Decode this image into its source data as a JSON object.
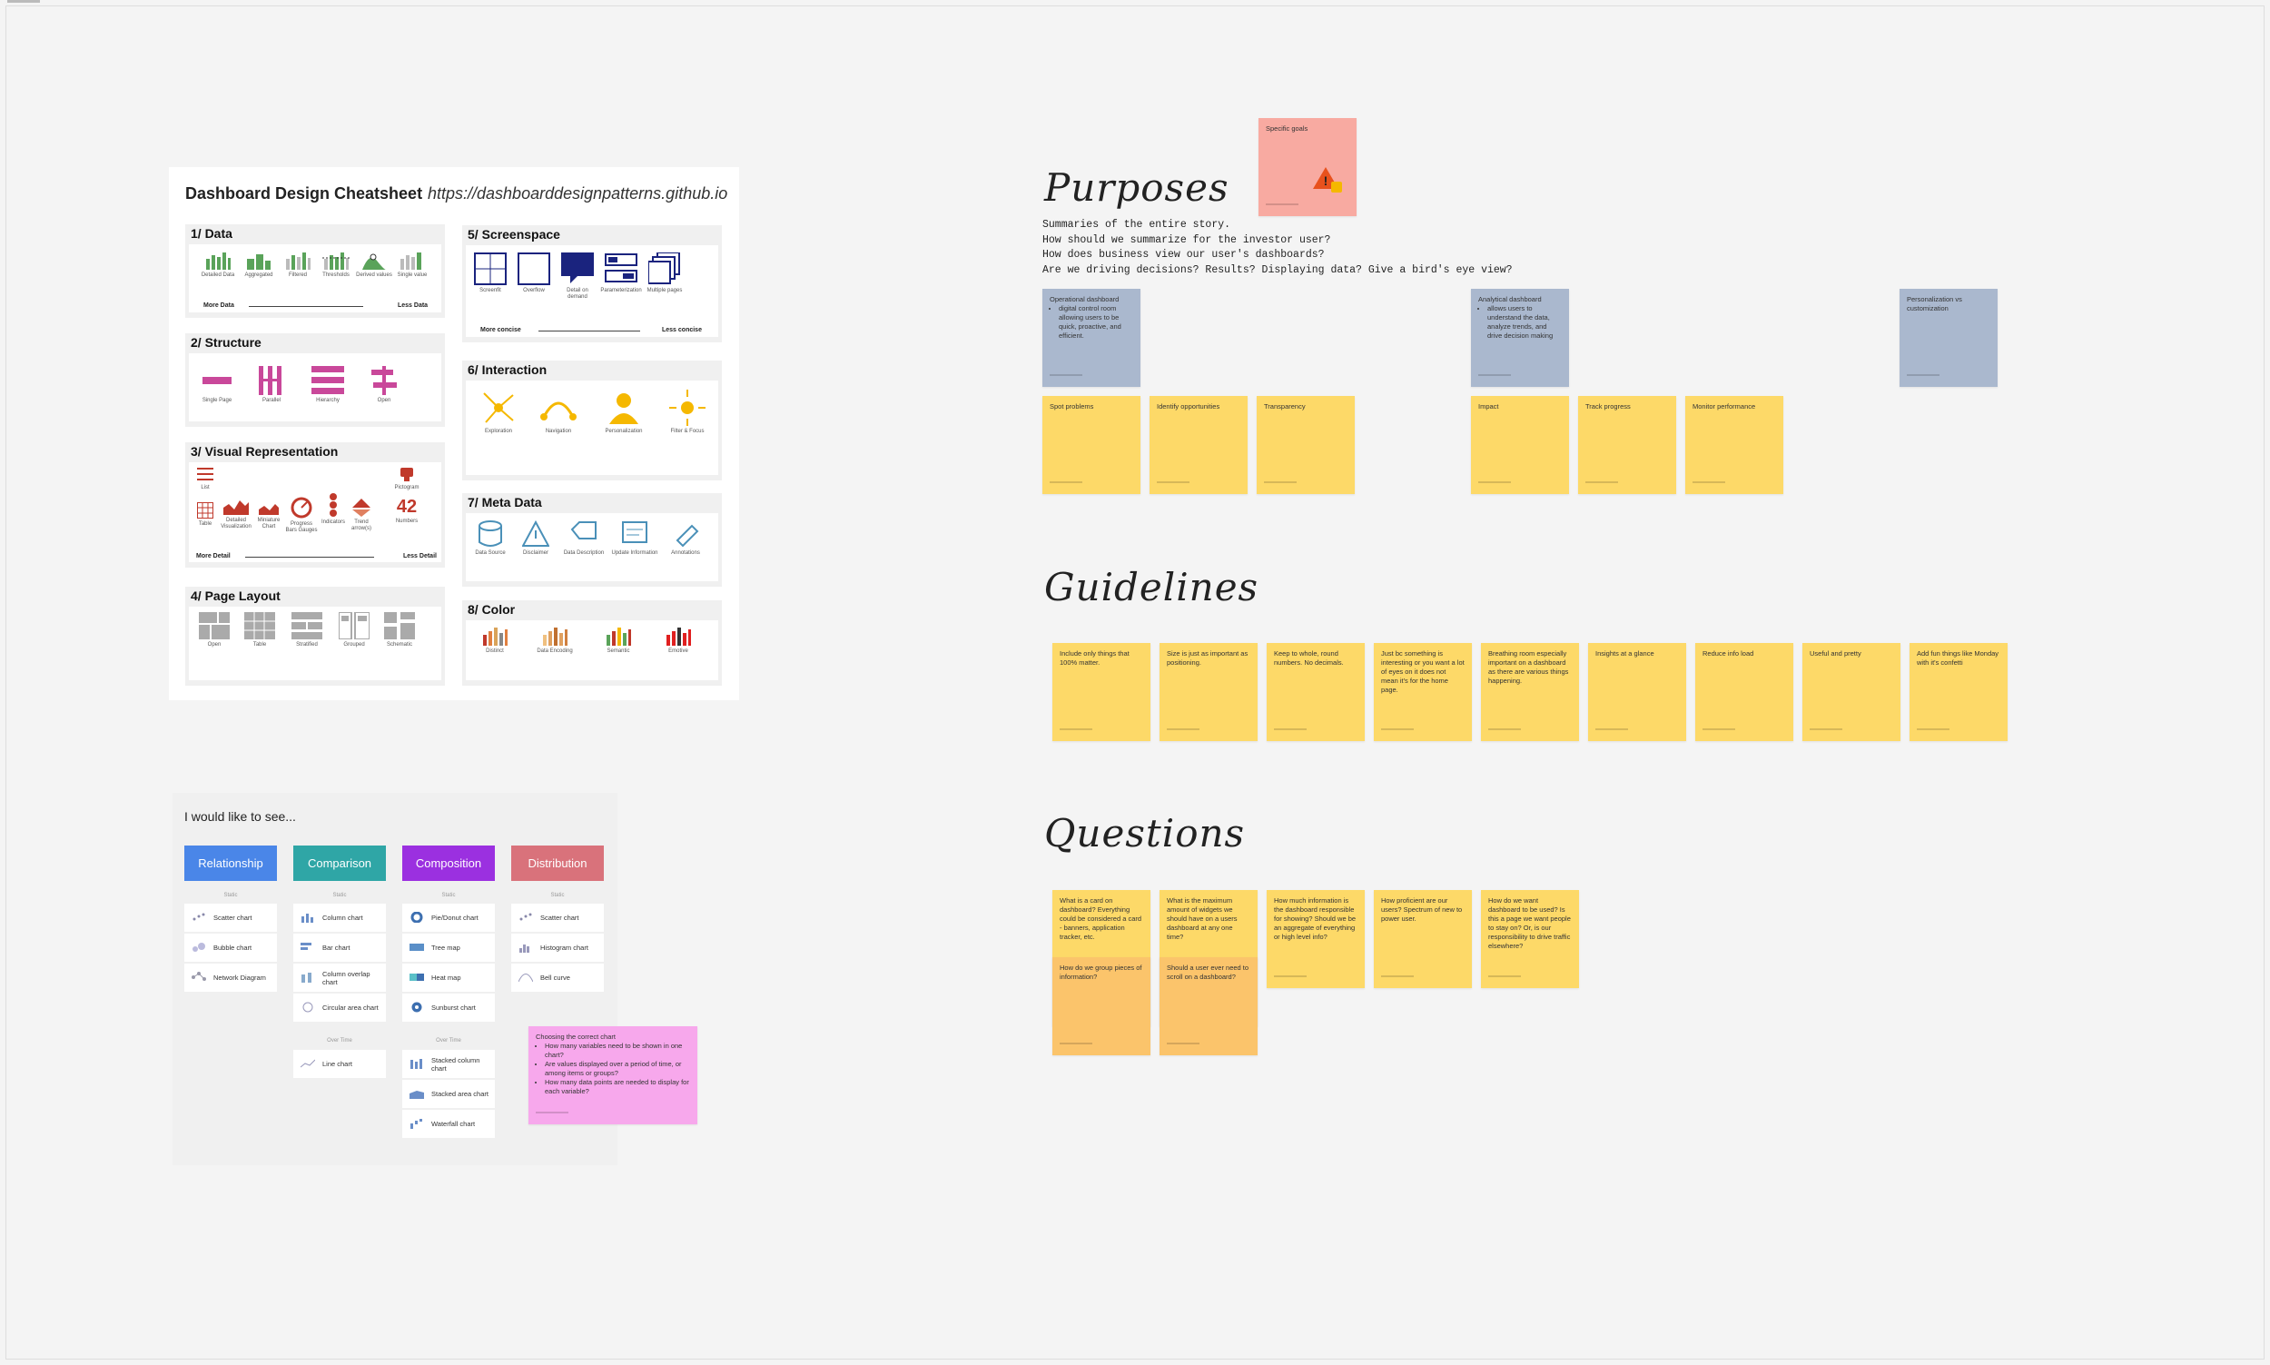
{
  "cheatsheet": {
    "title": "Dashboard Design Cheatsheet",
    "url": "https://dashboarddesignpatterns.github.io",
    "sections": [
      {
        "title": "1/ Data",
        "items": [
          "Detailed Data",
          "Aggregated",
          "Filtered",
          "Thresholds",
          "Derived values",
          "Single value"
        ],
        "more": "More Data",
        "less": "Less Data"
      },
      {
        "title": "2/ Structure",
        "items": [
          "Single Page",
          "Parallel",
          "Hierarchy",
          "Open"
        ]
      },
      {
        "title": "3/ Visual Representation",
        "items": [
          "List",
          "Table",
          "Detailed Visualization",
          "Miniature Chart",
          "Progress Bars Gauges",
          "Indicators",
          "Trend arrow(s)",
          "Pictogram",
          "Numbers"
        ],
        "number": "42",
        "more": "More Detail",
        "less": "Less Detail"
      },
      {
        "title": "4/ Page Layout",
        "items": [
          "Open",
          "Table",
          "Stratified",
          "Grouped",
          "Schematic"
        ]
      },
      {
        "title": "5/ Screenspace",
        "items": [
          "Screenfit",
          "Overflow",
          "Detail on demand",
          "Parameterization",
          "Multiple pages"
        ],
        "more": "More concise",
        "less": "Less concise"
      },
      {
        "title": "6/ Interaction",
        "items": [
          "Exploration",
          "Navigation",
          "Personalization",
          "Filter & Focus"
        ]
      },
      {
        "title": "7/  Meta Data",
        "items": [
          "Data Source",
          "Disclaimer",
          "Data Description",
          "Update Information",
          "Annotations"
        ]
      },
      {
        "title": "8/ Color",
        "items": [
          "Distinct",
          "Data Encoding",
          "Semantic",
          "Emotive"
        ]
      }
    ]
  },
  "purposes": {
    "heading": "Purposes",
    "text": "Summaries of the entire story.\nHow should we summarize for the investor user?\nHow does business view our user's dashboards?\nAre we driving decisions? Results? Displaying data? Give a bird's eye view?",
    "goal_note": "Specific goals",
    "operational": {
      "title": "Operational dashboard",
      "bullet": "digital control room allowing users to be quick, proactive, and efficient."
    },
    "analytical": {
      "title": "Analytical dashboard",
      "bullet": "allows users to understand the data, analyze trends, and drive decision making"
    },
    "personalization": "Personalization vs customization",
    "yellow": [
      "Spot problems",
      "Identify opportunities",
      "Transparency",
      "Impact",
      "Track progress",
      "Monitor performance"
    ]
  },
  "guidelines": {
    "heading": "Guidelines",
    "notes": [
      "Include only things that 100% matter.",
      "Size is just as important as positioning.",
      "Keep to whole, round numbers. No decimals.",
      "Just bc something is interesting or you want a lot of eyes on it does not mean it's for the home page.",
      "Breathing room especially important on a dashboard as there are various things happening.",
      "Insights at a glance",
      "Reduce info load",
      "Useful and pretty",
      "Add fun things like Monday with it's confetti"
    ]
  },
  "questions": {
    "heading": "Questions",
    "notes": [
      "What is a card on dashboard? Everything could be considered a card - banners, application tracker, etc.",
      "What is the maximum amount of widgets we should have on a users dashboard at any one time?",
      "How much information is the dashboard responsible for showing? Should we be an aggregate of everything or high level info?",
      "How proficient are our users? Spectrum of new to power user.",
      "How do we want dashboard to be used? Is this a page we want people to stay on? Or, is our responsibility to drive traffic elsewhere?"
    ],
    "orange": [
      "How do we group pieces of information?",
      "Should a user ever need to scroll on a dashboard?"
    ]
  },
  "chooser": {
    "title": "I would like to see...",
    "categories": [
      {
        "label": "Relationship",
        "color": "#4a86e8"
      },
      {
        "label": "Comparison",
        "color": "#2fa6a6"
      },
      {
        "label": "Composition",
        "color": "#9b30e0"
      },
      {
        "label": "Distribution",
        "color": "#d9727b"
      }
    ],
    "static_label": "Static",
    "overtime_label": "Over Time",
    "relationship": [
      "Scatter chart",
      "Bubble chart",
      "Network Diagram"
    ],
    "comparison": [
      "Column chart",
      "Bar chart",
      "Column overlap chart",
      "Circular area chart"
    ],
    "comparison_time": [
      "Line chart"
    ],
    "composition": [
      "Pie/Donut chart",
      "Tree map",
      "Heat map",
      "Sunburst chart"
    ],
    "composition_time": [
      "Stacked column chart",
      "Stacked area chart",
      "Waterfall chart"
    ],
    "distribution": [
      "Scatter chart",
      "Histogram chart",
      "Bell curve"
    ],
    "note_title": "Choosing the correct chart",
    "note_bullets": [
      "How many variables need to be shown in one chart?",
      "Are values displayed over a period of time, or among items or groups?",
      "How many data points are needed to display for each variable?"
    ]
  }
}
